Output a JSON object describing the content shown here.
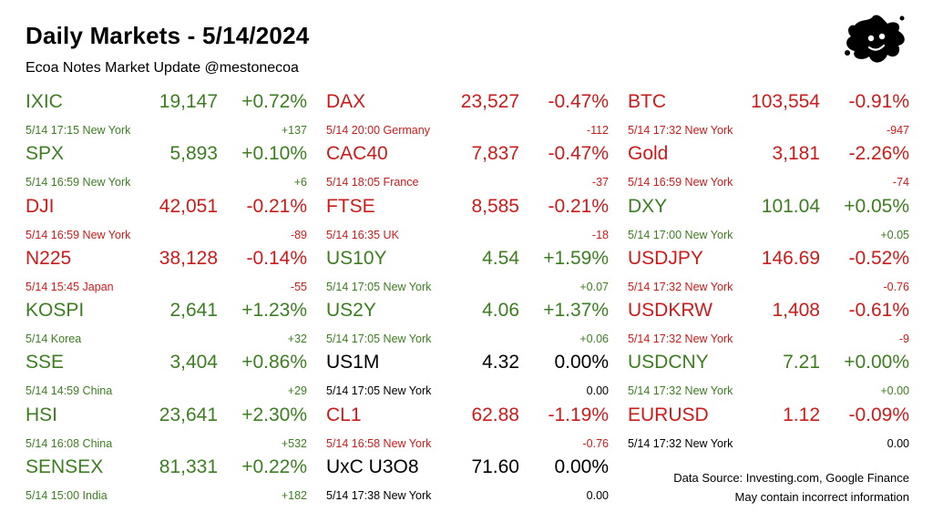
{
  "header": {
    "title": "Daily Markets - 5/14/2024",
    "subtitle": "Ecoa Notes Market Update @mestonecoa"
  },
  "colors": {
    "up": "#3e7d22",
    "down": "#cc1b1b",
    "flat": "#000000"
  },
  "columns": [
    [
      {
        "name": "IXIC",
        "value": "19,147",
        "pct": "+0.72%",
        "meta": "5/14 17:15 New York",
        "change": "+137",
        "dir": "up"
      },
      {
        "name": "SPX",
        "value": "5,893",
        "pct": "+0.10%",
        "meta": "5/14 16:59 New York",
        "change": "+6",
        "dir": "up"
      },
      {
        "name": "DJI",
        "value": "42,051",
        "pct": "-0.21%",
        "meta": "5/14 16:59 New York",
        "change": "-89",
        "dir": "down"
      },
      {
        "name": "N225",
        "value": "38,128",
        "pct": "-0.14%",
        "meta": "5/14 15:45 Japan",
        "change": "-55",
        "dir": "down"
      },
      {
        "name": "KOSPI",
        "value": "2,641",
        "pct": "+1.23%",
        "meta": "5/14  Korea",
        "change": "+32",
        "dir": "up"
      },
      {
        "name": "SSE",
        "value": "3,404",
        "pct": "+0.86%",
        "meta": "5/14 14:59 China",
        "change": "+29",
        "dir": "up"
      },
      {
        "name": "HSI",
        "value": "23,641",
        "pct": "+2.30%",
        "meta": "5/14 16:08 China",
        "change": "+532",
        "dir": "up"
      },
      {
        "name": "SENSEX",
        "value": "81,331",
        "pct": "+0.22%",
        "meta": "5/14 15:00 India",
        "change": "+182",
        "dir": "up"
      }
    ],
    [
      {
        "name": "DAX",
        "value": "23,527",
        "pct": "-0.47%",
        "meta": "5/14 20:00 Germany",
        "change": "-112",
        "dir": "down"
      },
      {
        "name": "CAC40",
        "value": "7,837",
        "pct": "-0.47%",
        "meta": "5/14 18:05 France",
        "change": "-37",
        "dir": "down"
      },
      {
        "name": "FTSE",
        "value": "8,585",
        "pct": "-0.21%",
        "meta": "5/14 16:35 UK",
        "change": "-18",
        "dir": "down"
      },
      {
        "name": "US10Y",
        "value": "4.54",
        "pct": "+1.59%",
        "meta": "5/14 17:05 New York",
        "change": "+0.07",
        "dir": "up"
      },
      {
        "name": "US2Y",
        "value": "4.06",
        "pct": "+1.37%",
        "meta": "5/14 17:05 New York",
        "change": "+0.06",
        "dir": "up"
      },
      {
        "name": "US1M",
        "value": "4.32",
        "pct": "0.00%",
        "meta": "5/14 17:05 New York",
        "change": "0.00",
        "dir": "flat"
      },
      {
        "name": "CL1",
        "value": "62.88",
        "pct": "-1.19%",
        "meta": "5/14 16:58 New York",
        "change": "-0.76",
        "dir": "down"
      },
      {
        "name": "UxC U3O8",
        "value": "71.60",
        "pct": "0.00%",
        "meta": "5/14 17:38 New York",
        "change": "0.00",
        "dir": "flat"
      }
    ],
    [
      {
        "name": "BTC",
        "value": "103,554",
        "pct": "-0.91%",
        "meta": "5/14 17:32 New York",
        "change": "-947",
        "dir": "down"
      },
      {
        "name": "Gold",
        "value": "3,181",
        "pct": "-2.26%",
        "meta": "5/14 16:59 New York",
        "change": "-74",
        "dir": "down"
      },
      {
        "name": "DXY",
        "value": "101.04",
        "pct": "+0.05%",
        "meta": "5/14 17:00 New York",
        "change": "+0.05",
        "dir": "up"
      },
      {
        "name": "USDJPY",
        "value": "146.69",
        "pct": "-0.52%",
        "meta": "5/14 17:32 New York",
        "change": "-0.76",
        "dir": "down"
      },
      {
        "name": "USDKRW",
        "value": "1,408",
        "pct": "-0.61%",
        "meta": "5/14 17:32 New York",
        "change": "-9",
        "dir": "down"
      },
      {
        "name": "USDCNY",
        "value": "7.21",
        "pct": "+0.00%",
        "meta": "5/14 17:32 New York",
        "change": "+0.00",
        "dir": "up"
      },
      {
        "name": "EURUSD",
        "value": "1.12",
        "pct": "-0.09%",
        "meta": "5/14 17:32 New York",
        "change": "0.00",
        "dir": "down",
        "change_dir": "flat",
        "meta_dir": "flat"
      }
    ]
  ],
  "footer": {
    "source": "Data Source: Investing.com, Google Finance",
    "disclaimer": "May contain incorrect information"
  },
  "logo_icon": "ink-splat-logo-icon"
}
